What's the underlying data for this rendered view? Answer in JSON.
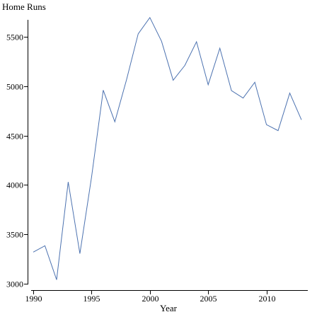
{
  "chart_data": {
    "type": "line",
    "title": "",
    "xlabel": "Year",
    "ylabel": "Home Runs",
    "xlim": [
      1989.5,
      2013.5
    ],
    "ylim": [
      2980,
      5780
    ],
    "x_ticks": [
      1990,
      1995,
      2000,
      2005,
      2010
    ],
    "y_ticks": [
      3000,
      3500,
      4000,
      4500,
      5000,
      5500
    ],
    "x_tick_labels": [
      "1990",
      "1995",
      "2000",
      "2005",
      "2010"
    ],
    "y_tick_labels": [
      "3000",
      "3500",
      "4000",
      "4500",
      "5000",
      "5500"
    ],
    "grid": false,
    "series_color": "#4c72b0",
    "x": [
      1990,
      1991,
      1992,
      1993,
      1994,
      1995,
      1996,
      1997,
      1998,
      1999,
      2000,
      2001,
      2002,
      2003,
      2004,
      2005,
      2006,
      2007,
      2008,
      2009,
      2010,
      2011,
      2012,
      2013
    ],
    "values": [
      3320,
      3385,
      3040,
      4030,
      3305,
      4080,
      4960,
      4640,
      5065,
      5530,
      5695,
      5455,
      5060,
      5210,
      5450,
      5015,
      5385,
      4955,
      4880,
      5040,
      4610,
      4550,
      4930,
      4660
    ]
  }
}
